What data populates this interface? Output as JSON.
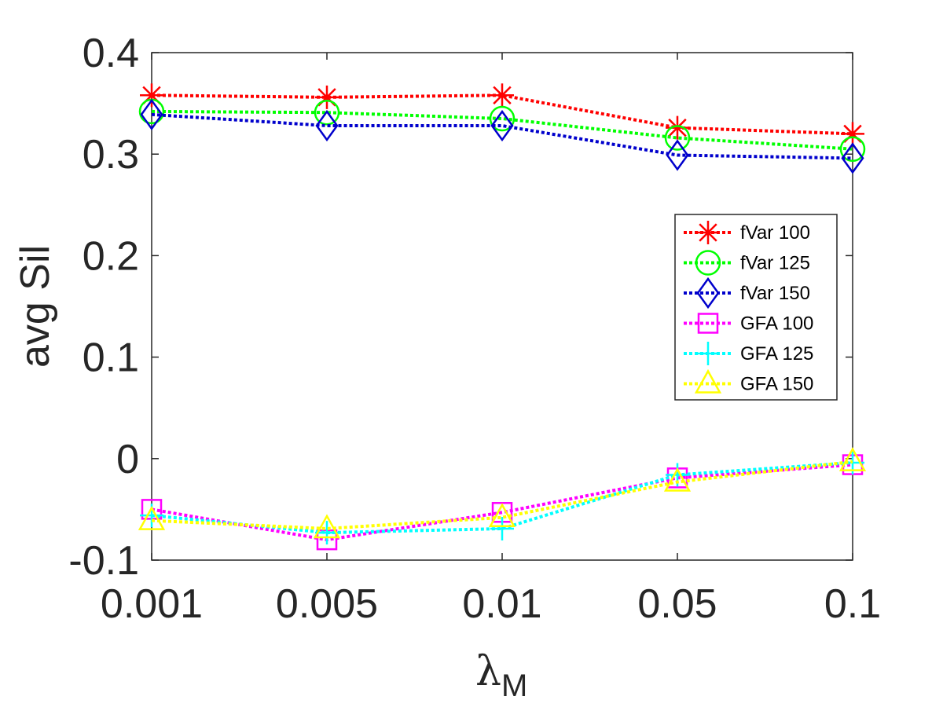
{
  "chart_data": {
    "type": "line",
    "title": "",
    "xlabel": "λ",
    "xlabel_subscript": "M",
    "ylabel": "avg Sil",
    "categories": [
      "0.001",
      "0.005",
      "0.01",
      "0.05",
      "0.1"
    ],
    "ylim": [
      -0.1,
      0.4
    ],
    "yticks": [
      "-0.1",
      "0",
      "0.1",
      "0.2",
      "0.3",
      "0.4"
    ],
    "ytick_values": [
      -0.1,
      0,
      0.1,
      0.2,
      0.3,
      0.4
    ],
    "grid": false,
    "legend_position": "center-right",
    "series": [
      {
        "name": "fVar 100",
        "color": "#ff0000",
        "marker": "asterisk",
        "values": [
          0.358,
          0.356,
          0.358,
          0.326,
          0.32
        ]
      },
      {
        "name": "fVar 125",
        "color": "#00ff00",
        "marker": "circle",
        "values": [
          0.342,
          0.341,
          0.335,
          0.316,
          0.305
        ]
      },
      {
        "name": "fVar 150",
        "color": "#0000cc",
        "marker": "diamond",
        "values": [
          0.339,
          0.328,
          0.328,
          0.299,
          0.296
        ]
      },
      {
        "name": "GFA 100",
        "color": "#ff00ff",
        "marker": "square",
        "values": [
          -0.05,
          -0.08,
          -0.053,
          -0.019,
          -0.006
        ]
      },
      {
        "name": "GFA 125",
        "color": "#00ffff",
        "marker": "plus",
        "values": [
          -0.056,
          -0.073,
          -0.069,
          -0.016,
          -0.004
        ]
      },
      {
        "name": "GFA 150",
        "color": "#ffff00",
        "marker": "triangle",
        "values": [
          -0.061,
          -0.069,
          -0.058,
          -0.023,
          -0.003
        ]
      }
    ]
  }
}
